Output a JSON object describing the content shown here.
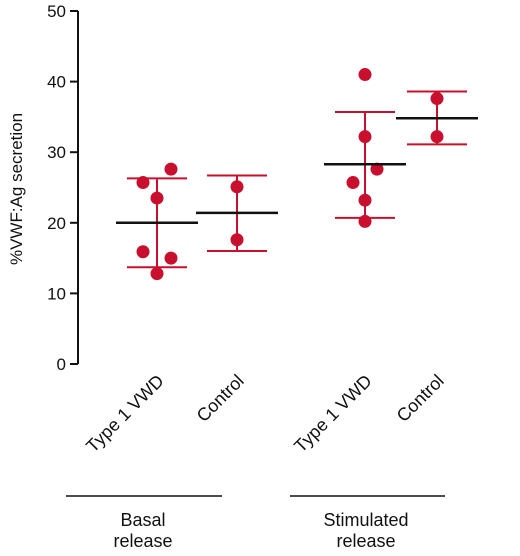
{
  "chart_data": {
    "type": "scatter",
    "title": "",
    "xlabel": "",
    "ylabel": "%VWF:Ag secretion",
    "ylim": [
      0,
      50
    ],
    "yticks": [
      0,
      10,
      20,
      30,
      40,
      50
    ],
    "grid": false,
    "legend": "none",
    "colors": {
      "points": "#c8102e",
      "error_bars": "#c8102e",
      "mean": "#111111",
      "axis": "#111111"
    },
    "groups": [
      {
        "label_lines": [
          "Basal",
          "release"
        ],
        "categories": [
          {
            "label": "Type 1 VWD",
            "mean": 20.0,
            "sd_low": 13.7,
            "sd_high": 26.3,
            "points": [
              27.6,
              25.7,
              23.5,
              15.9,
              15.0,
              12.8
            ]
          },
          {
            "label": "Control",
            "mean": 21.4,
            "sd_low": 16.0,
            "sd_high": 26.7,
            "points": [
              25.1,
              17.6
            ]
          }
        ]
      },
      {
        "label_lines": [
          "Stimulated",
          "release"
        ],
        "categories": [
          {
            "label": "Type 1 VWD",
            "mean": 28.3,
            "sd_low": 20.7,
            "sd_high": 35.7,
            "points": [
              41.0,
              32.2,
              27.6,
              25.7,
              23.2,
              20.2
            ]
          },
          {
            "label": "Control",
            "mean": 34.8,
            "sd_low": 31.1,
            "sd_high": 38.6,
            "points": [
              37.6,
              32.2
            ]
          }
        ]
      }
    ]
  }
}
